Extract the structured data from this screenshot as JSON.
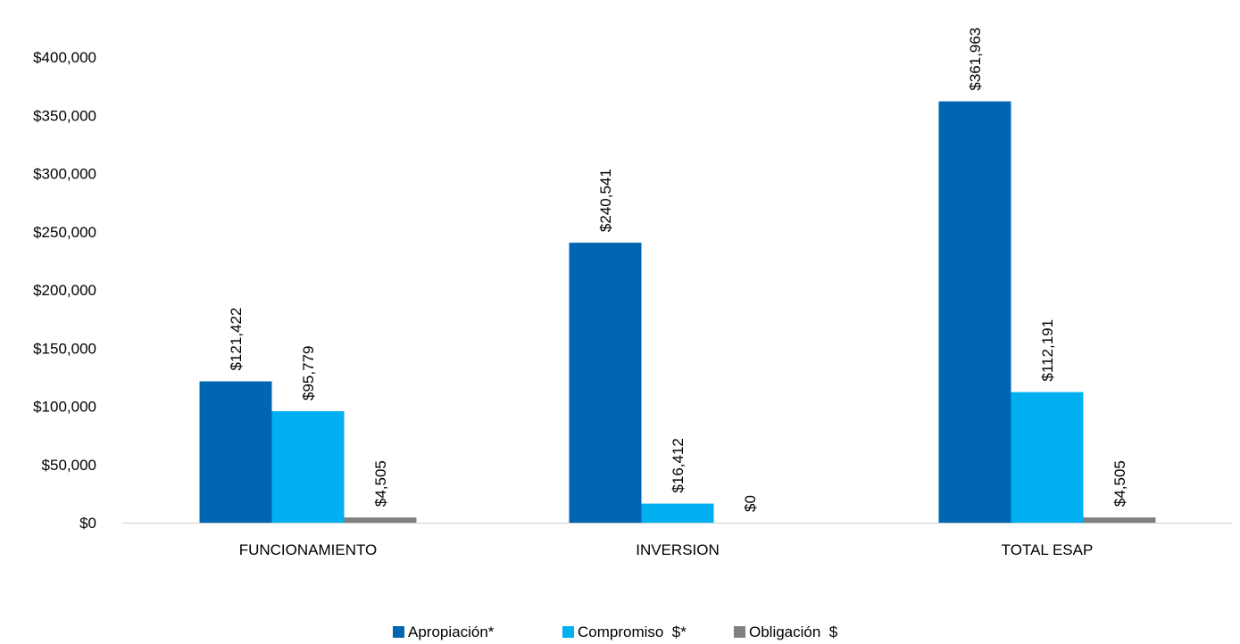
{
  "chart_data": {
    "type": "bar",
    "categories": [
      "FUNCIONAMIENTO",
      "INVERSION",
      "TOTAL ESAP"
    ],
    "series": [
      {
        "name": "Apropiación*",
        "color": "#0066b3",
        "values": [
          121422,
          240541,
          361963
        ],
        "labels": [
          "$121,422",
          "$240,541",
          "$361,963"
        ]
      },
      {
        "name": "Compromiso  $*",
        "color": "#00b0f0",
        "values": [
          95779,
          16412,
          112191
        ],
        "labels": [
          "$95,779",
          "$16,412",
          "$112,191"
        ]
      },
      {
        "name": "Obligación  $",
        "color": "#808080",
        "values": [
          4505,
          0,
          4505
        ],
        "labels": [
          "$4,505",
          "$0",
          "$4,505"
        ]
      }
    ],
    "y_ticks": [
      0,
      50000,
      100000,
      150000,
      200000,
      250000,
      300000,
      350000,
      400000
    ],
    "y_tick_labels": [
      "$0",
      "$50,000",
      "$100,000",
      "$150,000",
      "$200,000",
      "$250,000",
      "$300,000",
      "$350,000",
      "$400,000"
    ],
    "ylim": [
      0,
      400000
    ],
    "grid": false,
    "legend_position": "bottom-center",
    "title": "",
    "xlabel": "",
    "ylabel": ""
  }
}
